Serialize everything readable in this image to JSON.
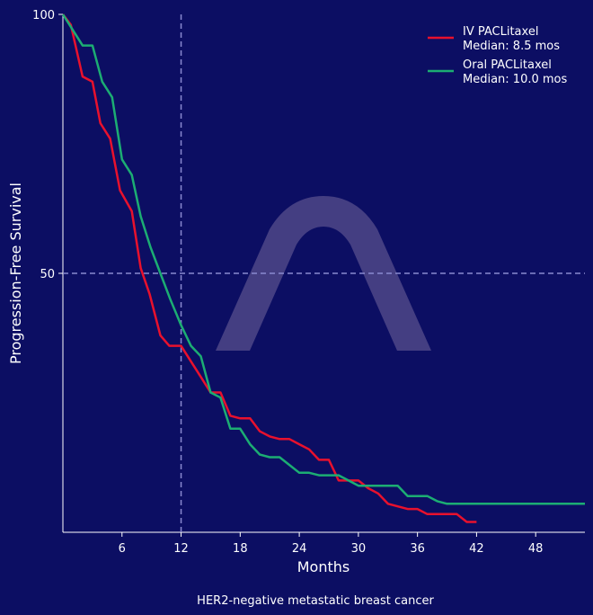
{
  "chart_data": {
    "type": "line",
    "xlabel": "Months",
    "ylabel": "Progression-Free Survival",
    "caption": "HER2-negative metastatic breast cancer",
    "xlim": [
      0,
      53
    ],
    "ylim": [
      0,
      100
    ],
    "xticks": [
      6,
      12,
      18,
      24,
      30,
      36,
      42,
      48
    ],
    "yticks": [
      50,
      100
    ],
    "reference_lines": {
      "x": 12,
      "y": 50
    },
    "legend_position": "top-right",
    "grid": false,
    "series": [
      {
        "name": "IV PACLitaxel",
        "legend_sub": "Median: 8.5 mos",
        "color": "#e8112d",
        "x": [
          0,
          0.8,
          2,
          3,
          3.8,
          4.8,
          5.8,
          7,
          7.9,
          8.8,
          9.9,
          10.8,
          12,
          13,
          14,
          15,
          16,
          17,
          18,
          19,
          20,
          21,
          22,
          23,
          24,
          25,
          26,
          27,
          28,
          29,
          30,
          31,
          32,
          33,
          34,
          35,
          36,
          37,
          38,
          39,
          40,
          41,
          42
        ],
        "y": [
          100,
          98,
          88,
          87,
          79,
          76,
          66,
          62,
          51,
          46,
          38,
          36,
          36,
          33,
          30,
          27,
          27,
          22.5,
          22,
          22,
          19.5,
          18.5,
          18,
          18,
          17,
          16,
          14,
          14,
          10,
          10,
          10,
          8.5,
          7.5,
          5.5,
          5,
          4.5,
          4.5,
          3.5,
          3.5,
          3.5,
          3.5,
          2,
          2
        ]
      },
      {
        "name": "Oral PACLitaxel",
        "legend_sub": "Median: 10.0 mos",
        "color": "#1cad73",
        "x": [
          0,
          1,
          2,
          3,
          4,
          5,
          6,
          7,
          7.9,
          8.9,
          9.9,
          10.9,
          12,
          13,
          14,
          15,
          16,
          17,
          18,
          19,
          20,
          21,
          22,
          23,
          24,
          25,
          26,
          27,
          28,
          29,
          30,
          31,
          32,
          33,
          34,
          35,
          36,
          37,
          38,
          39,
          40,
          41,
          42,
          43,
          44,
          45,
          46,
          47,
          48,
          49,
          50,
          51,
          52,
          53
        ],
        "y": [
          100,
          97,
          94,
          94,
          87,
          84,
          72,
          69,
          61,
          55,
          50,
          45,
          40,
          36,
          34,
          27,
          26,
          20,
          20,
          17,
          15,
          14.5,
          14.5,
          13,
          11.5,
          11.5,
          11,
          11,
          11,
          10,
          9,
          9,
          9,
          9,
          9,
          7,
          7,
          7,
          6,
          5.5,
          5.5,
          5.5,
          5.5,
          5.5,
          5.5,
          5.5,
          5.5,
          5.5,
          5.5,
          5.5,
          5.5,
          5.5,
          5.5,
          5.5
        ]
      }
    ]
  }
}
